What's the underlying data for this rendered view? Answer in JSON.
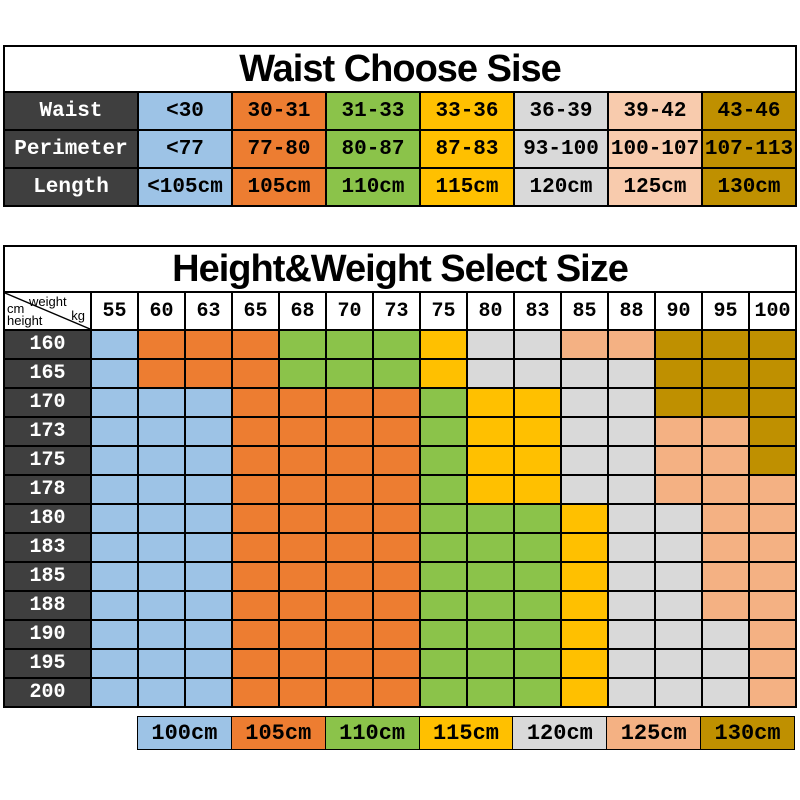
{
  "palette": {
    "blue": "#9DC3E6",
    "orange": "#ED7D31",
    "green": "#8BC34A",
    "yellow": "#FFC000",
    "gray": "#D9D9D9",
    "salmon": "#F4B183",
    "peach": "#F8CBAD",
    "gold": "#BF9000",
    "header_bg": "#3F3F3F",
    "border": "#000000"
  },
  "waist_table": {
    "title": "Waist Choose Sise",
    "column_color_keys": [
      "blue",
      "orange",
      "green",
      "yellow",
      "gray",
      "peach",
      "gold"
    ],
    "rows": [
      {
        "label": "Waist",
        "cells": [
          "<30",
          "30-31",
          "31-33",
          "33-36",
          "36-39",
          "39-42",
          "43-46"
        ]
      },
      {
        "label": "Perimeter",
        "cells": [
          "<77",
          "77-80",
          "80-87",
          "87-83",
          "93-100",
          "100-107",
          "107-113"
        ]
      },
      {
        "label": "Length",
        "cells": [
          "<105cm",
          "105cm",
          "110cm",
          "115cm",
          "120cm",
          "125cm",
          "130cm"
        ]
      }
    ]
  },
  "height_weight_table": {
    "title": "Height&Weight Select Size",
    "corner_labels": {
      "weight": "weight",
      "kg": "kg",
      "cm": "cm",
      "height": "height"
    },
    "weight_columns": [
      "55",
      "60",
      "63",
      "65",
      "68",
      "70",
      "73",
      "75",
      "80",
      "83",
      "85",
      "88",
      "90",
      "95",
      "100"
    ],
    "rows": [
      {
        "height": "160",
        "colors": [
          "blue",
          "orange",
          "orange",
          "orange",
          "green",
          "green",
          "green",
          "yellow",
          "gray",
          "gray",
          "salmon",
          "salmon",
          "gold",
          "gold",
          "gold"
        ]
      },
      {
        "height": "165",
        "colors": [
          "blue",
          "orange",
          "orange",
          "orange",
          "green",
          "green",
          "green",
          "yellow",
          "gray",
          "gray",
          "gray",
          "gray",
          "gold",
          "gold",
          "gold"
        ]
      },
      {
        "height": "170",
        "colors": [
          "blue",
          "blue",
          "blue",
          "orange",
          "orange",
          "orange",
          "orange",
          "green",
          "yellow",
          "yellow",
          "gray",
          "gray",
          "gold",
          "gold",
          "gold"
        ]
      },
      {
        "height": "173",
        "colors": [
          "blue",
          "blue",
          "blue",
          "orange",
          "orange",
          "orange",
          "orange",
          "green",
          "yellow",
          "yellow",
          "gray",
          "gray",
          "salmon",
          "salmon",
          "gold"
        ]
      },
      {
        "height": "175",
        "colors": [
          "blue",
          "blue",
          "blue",
          "orange",
          "orange",
          "orange",
          "orange",
          "green",
          "yellow",
          "yellow",
          "gray",
          "gray",
          "salmon",
          "salmon",
          "gold"
        ]
      },
      {
        "height": "178",
        "colors": [
          "blue",
          "blue",
          "blue",
          "orange",
          "orange",
          "orange",
          "orange",
          "green",
          "yellow",
          "yellow",
          "gray",
          "gray",
          "salmon",
          "salmon",
          "salmon"
        ]
      },
      {
        "height": "180",
        "colors": [
          "blue",
          "blue",
          "blue",
          "orange",
          "orange",
          "orange",
          "orange",
          "green",
          "green",
          "green",
          "yellow",
          "gray",
          "gray",
          "salmon",
          "salmon"
        ]
      },
      {
        "height": "183",
        "colors": [
          "blue",
          "blue",
          "blue",
          "orange",
          "orange",
          "orange",
          "orange",
          "green",
          "green",
          "green",
          "yellow",
          "gray",
          "gray",
          "salmon",
          "salmon"
        ]
      },
      {
        "height": "185",
        "colors": [
          "blue",
          "blue",
          "blue",
          "orange",
          "orange",
          "orange",
          "orange",
          "green",
          "green",
          "green",
          "yellow",
          "gray",
          "gray",
          "salmon",
          "salmon"
        ]
      },
      {
        "height": "188",
        "colors": [
          "blue",
          "blue",
          "blue",
          "orange",
          "orange",
          "orange",
          "orange",
          "green",
          "green",
          "green",
          "yellow",
          "gray",
          "gray",
          "salmon",
          "salmon"
        ]
      },
      {
        "height": "190",
        "colors": [
          "blue",
          "blue",
          "blue",
          "orange",
          "orange",
          "orange",
          "orange",
          "green",
          "green",
          "green",
          "yellow",
          "gray",
          "gray",
          "gray",
          "salmon"
        ]
      },
      {
        "height": "195",
        "colors": [
          "blue",
          "blue",
          "blue",
          "orange",
          "orange",
          "orange",
          "orange",
          "green",
          "green",
          "green",
          "yellow",
          "gray",
          "gray",
          "gray",
          "salmon"
        ]
      },
      {
        "height": "200",
        "colors": [
          "blue",
          "blue",
          "blue",
          "orange",
          "orange",
          "orange",
          "orange",
          "green",
          "green",
          "green",
          "yellow",
          "gray",
          "gray",
          "gray",
          "salmon"
        ]
      }
    ]
  },
  "legend": {
    "items": [
      {
        "label": "100cm",
        "color_key": "blue"
      },
      {
        "label": "105cm",
        "color_key": "orange"
      },
      {
        "label": "110cm",
        "color_key": "green"
      },
      {
        "label": "115cm",
        "color_key": "yellow"
      },
      {
        "label": "120cm",
        "color_key": "gray"
      },
      {
        "label": "125cm",
        "color_key": "salmon"
      },
      {
        "label": "130cm",
        "color_key": "gold"
      }
    ]
  }
}
